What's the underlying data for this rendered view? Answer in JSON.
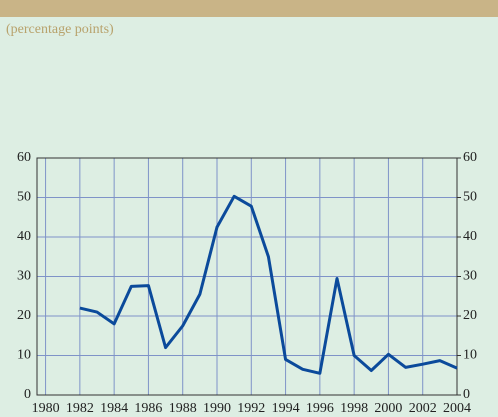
{
  "chart_data": {
    "type": "line",
    "subtitle": "(percentage points)",
    "x": [
      1982,
      1983,
      1984,
      1985,
      1986,
      1987,
      1988,
      1989,
      1990,
      1991,
      1992,
      1993,
      1994,
      1995,
      1996,
      1997,
      1998,
      1999,
      2000,
      2001,
      2002,
      2003,
      2004
    ],
    "series": [
      {
        "color": "#0b4a9b",
        "values": [
          22,
          21,
          18,
          27.5,
          27.7,
          12,
          17.5,
          25.5,
          42.5,
          50.3,
          47.8,
          35,
          9,
          6.5,
          5.5,
          29.5,
          10,
          6.2,
          10.3,
          7,
          7.8,
          8.7,
          6.8
        ]
      }
    ],
    "xlim": [
      1979.5,
      2004
    ],
    "xticks": [
      1980,
      1982,
      1984,
      1986,
      1988,
      1990,
      1992,
      1994,
      1996,
      1998,
      2000,
      2002,
      2004
    ],
    "ylim": [
      0,
      60
    ],
    "yticks": [
      0,
      10,
      20,
      30,
      40,
      50,
      60
    ],
    "y2lim": [
      0,
      60
    ],
    "y2ticks": [
      0,
      10,
      20,
      30,
      40,
      50,
      60
    ],
    "grid": true
  }
}
